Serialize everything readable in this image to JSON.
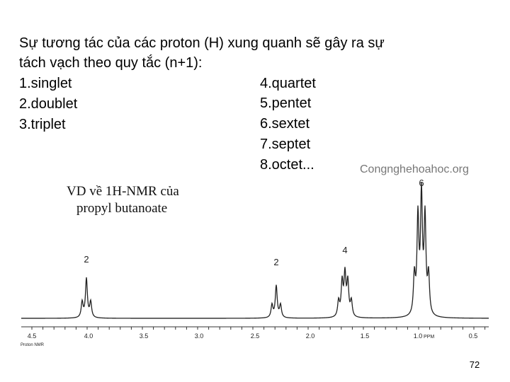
{
  "slide": {
    "intro": [
      "Sự tương tác của các proton (H) xung quanh sẽ gây ra sự",
      "tách vạch theo quy tắc (n+1):"
    ],
    "left_list": [
      "1.singlet",
      "2.doublet",
      "3.triplet"
    ],
    "right_list": [
      "4.quartet",
      "5.pentet",
      "6.sextet",
      "7.septet",
      "8.octet..."
    ],
    "watermark": "Congnghehoahoc.org",
    "figure": {
      "caption": [
        "VD về 1H-NMR của",
        "propyl butanoate"
      ],
      "integrations": [
        "2",
        "2",
        "4",
        "6"
      ],
      "axis_labels": [
        "4.5",
        "4.0",
        "3.5",
        "3.0",
        "2.5",
        "2.0",
        "1.5",
        "1.0",
        "PPM",
        "0.5"
      ],
      "axis_caption": "Proton NMR"
    },
    "page_number": "72"
  }
}
